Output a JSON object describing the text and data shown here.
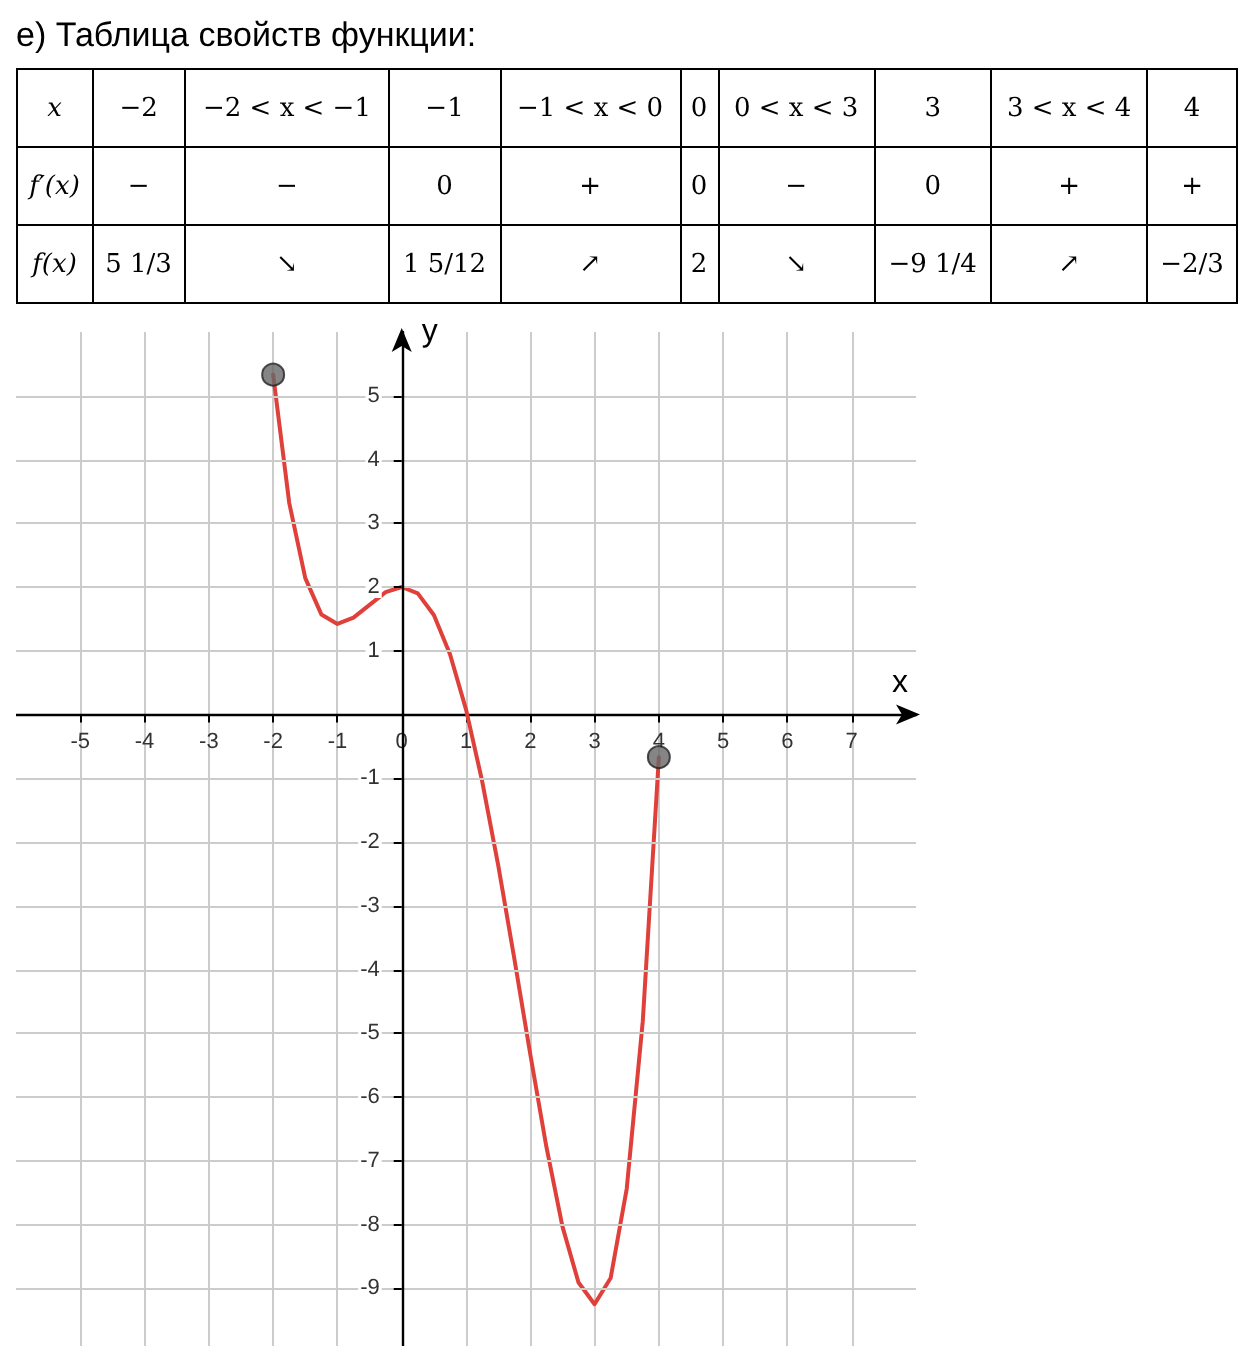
{
  "chart_data": {
    "type": "line",
    "title": "е) Таблица свойств функции:",
    "annotations": [
      "x",
      "−2",
      "−2 < x < −1",
      "−1",
      "−1 < x < 0",
      "0",
      "0 < x < 3",
      "3",
      "3 < x < 4",
      "4",
      "f′(x)",
      "−",
      "−",
      "0",
      "+",
      "0",
      "−",
      "0",
      "+",
      "+",
      "f(x)",
      "5 1/3",
      "↘",
      "1 5/12",
      "↗",
      "2",
      "↘",
      "−9 1/4",
      "↗",
      "−2/3"
    ],
    "xlabel": "x",
    "ylabel": "y",
    "xlim": [
      -6,
      8
    ],
    "ylim": [
      -10,
      6
    ],
    "xticks": [
      -5,
      -4,
      -3,
      -2,
      -1,
      0,
      1,
      2,
      3,
      4,
      5,
      6,
      7
    ],
    "yticks": [
      -9,
      -8,
      -7,
      -6,
      -5,
      -4,
      -3,
      -2,
      -1,
      1,
      2,
      3,
      4,
      5
    ],
    "grid": true,
    "series": [
      {
        "type": "line",
        "color": "#e0403a",
        "marker": "none",
        "x": [
          -2,
          -1.75,
          -1.5,
          -1.25,
          -1,
          -0.75,
          -0.5,
          -0.25,
          0,
          0.25,
          0.5,
          0.75,
          1,
          1.25,
          1.5,
          1.75,
          2,
          2.25,
          2.5,
          2.75,
          3,
          3.25,
          3.5,
          3.75,
          4
        ],
        "values": [
          5.33,
          3.32,
          2.14,
          1.57,
          1.42,
          1.52,
          1.72,
          1.92,
          2,
          1.9,
          1.56,
          0.95,
          0.08,
          -1.04,
          -2.36,
          -3.82,
          -5.33,
          -6.78,
          -8.03,
          -8.91,
          -9.25,
          -8.84,
          -7.44,
          -4.81,
          -0.67
        ]
      },
      {
        "type": "scatter",
        "color": "#666666",
        "marker": "circle",
        "x": [
          -2,
          4
        ],
        "values": [
          5.33,
          -0.67
        ]
      }
    ]
  }
}
